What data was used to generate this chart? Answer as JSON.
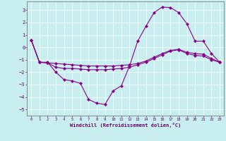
{
  "xlabel": "Windchill (Refroidissement éolien,°C)",
  "bg_color": "#c8eef0",
  "line_color": "#880088",
  "grid_color": "#ffffff",
  "ylim": [
    -5.5,
    3.7
  ],
  "xlim": [
    -0.5,
    23.5
  ],
  "yticks": [
    -5,
    -4,
    -3,
    -2,
    -1,
    0,
    1,
    2,
    3
  ],
  "xticks": [
    0,
    1,
    2,
    3,
    4,
    5,
    6,
    7,
    8,
    9,
    10,
    11,
    12,
    13,
    14,
    15,
    16,
    17,
    18,
    19,
    20,
    21,
    22,
    23
  ],
  "line1_x": [
    0,
    1,
    2,
    3,
    4,
    5,
    6,
    7,
    8,
    9,
    10,
    11,
    12,
    13,
    14,
    15,
    16,
    17,
    18,
    19,
    20,
    21,
    22,
    23
  ],
  "line1_y": [
    0.6,
    -1.2,
    -1.2,
    -2.0,
    -2.6,
    -2.7,
    -2.9,
    -4.2,
    -4.5,
    -4.6,
    -3.5,
    -3.1,
    -1.5,
    0.5,
    1.7,
    2.8,
    3.25,
    3.2,
    2.8,
    1.9,
    0.5,
    0.5,
    -0.5,
    -1.2
  ],
  "line2_x": [
    0,
    1,
    2,
    3,
    4,
    5,
    6,
    7,
    8,
    9,
    10,
    11,
    12,
    13,
    14,
    15,
    16,
    17,
    18,
    19,
    20,
    21,
    22,
    23
  ],
  "line2_y": [
    0.6,
    -1.2,
    -1.25,
    -1.3,
    -1.35,
    -1.4,
    -1.45,
    -1.5,
    -1.5,
    -1.5,
    -1.5,
    -1.45,
    -1.4,
    -1.3,
    -1.1,
    -0.8,
    -0.5,
    -0.25,
    -0.15,
    -0.4,
    -0.5,
    -0.55,
    -0.9,
    -1.2
  ],
  "line3_x": [
    0,
    1,
    2,
    3,
    4,
    5,
    6,
    7,
    8,
    9,
    10,
    11,
    12,
    13,
    14,
    15,
    16,
    17,
    18,
    19,
    20,
    21,
    22,
    23
  ],
  "line3_y": [
    0.6,
    -1.2,
    -1.25,
    -1.6,
    -1.7,
    -1.7,
    -1.75,
    -1.8,
    -1.8,
    -1.8,
    -1.75,
    -1.7,
    -1.6,
    -1.4,
    -1.2,
    -0.9,
    -0.6,
    -0.3,
    -0.2,
    -0.5,
    -0.65,
    -0.7,
    -1.0,
    -1.2
  ]
}
